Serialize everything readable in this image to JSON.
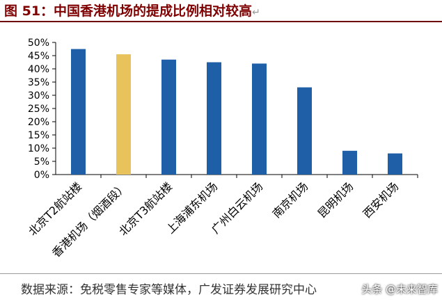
{
  "header": {
    "title": "图 51：中国香港机场的提成比例相对较高",
    "return_mark": "↵"
  },
  "chart_data": {
    "type": "bar",
    "title": "图 51：中国香港机场的提成比例相对较高",
    "xlabel": "",
    "ylabel": "",
    "categories": [
      "北京T2航站楼",
      "香港机场（烟酒段）",
      "北京T3航站楼",
      "上海浦东机场",
      "广州白云机场",
      "南京机场",
      "昆明机场",
      "西安机场"
    ],
    "values": [
      47.5,
      45.5,
      43.5,
      42.5,
      42,
      33,
      9,
      8
    ],
    "ylim": [
      0,
      50
    ],
    "y_ticks": [
      "0%",
      "5%",
      "10%",
      "15%",
      "20%",
      "25%",
      "30%",
      "35%",
      "40%",
      "45%",
      "50%"
    ],
    "grid": false,
    "legend": "none",
    "colors": {
      "default": "#1f5fa8",
      "highlight": "#e8c25a"
    },
    "highlight_index": 1
  },
  "footer": {
    "source": "数据来源：免税零售专家等媒体，广发证券发展研究中心",
    "watermark": "头条 @未来智库"
  }
}
